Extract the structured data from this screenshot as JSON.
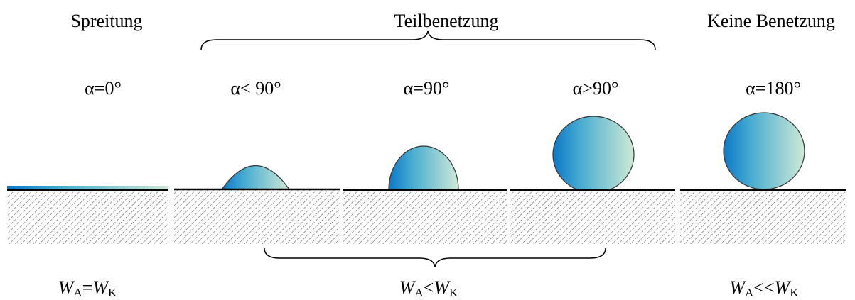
{
  "headers": [
    "Spreitung",
    "Teilbenetzung",
    "Keine Benetzung"
  ],
  "angles": [
    "α=0°",
    "α< 90°",
    "α=90°",
    "α>90°",
    "α=180°"
  ],
  "formulas": [
    {
      "lhs": "W",
      "lhs_sub": "A",
      "relation": "=",
      "rhs": "W",
      "rhs_sub": "K"
    },
    {
      "lhs": "W",
      "lhs_sub": "A",
      "relation": "<",
      "rhs": "W",
      "rhs_sub": "K"
    },
    {
      "lhs": "W",
      "lhs_sub": "A",
      "relation": "<<",
      "rhs": "W",
      "rhs_sub": "K"
    }
  ]
}
